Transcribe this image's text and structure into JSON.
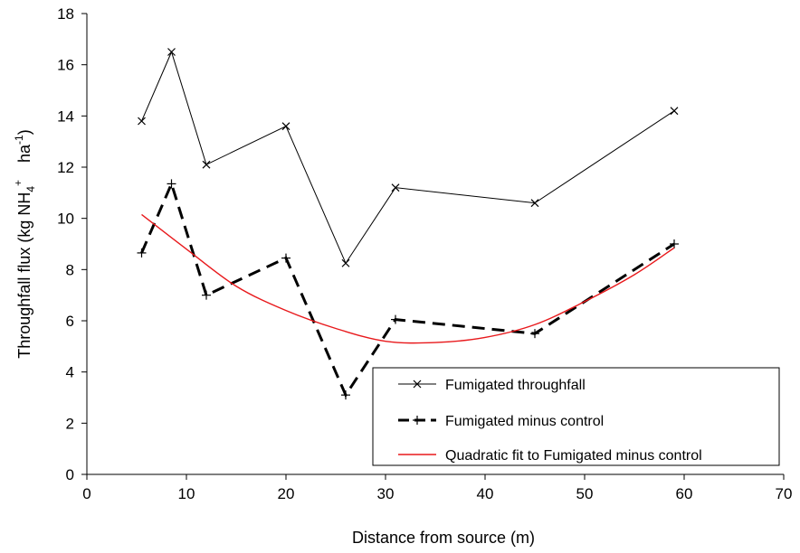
{
  "chart_data": {
    "type": "line",
    "title": "",
    "xlabel": "Distance from source (m)",
    "ylabel": {
      "main": "Throughfall flux (kg NH",
      "sub": "4",
      "sup": "+",
      "rest": " ha",
      "sup2": "-1",
      "end": ")"
    },
    "xlim": [
      0,
      70
    ],
    "ylim": [
      0,
      18
    ],
    "xticks": [
      "0",
      "10",
      "20",
      "30",
      "40",
      "50",
      "60",
      "70"
    ],
    "yticks": [
      "0",
      "2",
      "4",
      "6",
      "8",
      "10",
      "12",
      "14",
      "16",
      "18"
    ],
    "grid": false,
    "legend_position": "bottom-right",
    "series": [
      {
        "name": "Fumigated throughfall",
        "color": "#000000",
        "style": "solid",
        "marker": "x",
        "x": [
          5.5,
          8.5,
          12,
          20,
          26,
          31,
          45,
          59
        ],
        "y": [
          13.8,
          16.5,
          12.1,
          13.6,
          8.25,
          11.2,
          10.6,
          14.2
        ]
      },
      {
        "name": "Fumigated minus control",
        "color": "#000000",
        "style": "dashed",
        "marker": "+",
        "x": [
          5.5,
          8.5,
          12,
          20,
          26,
          31,
          45,
          59
        ],
        "y": [
          8.65,
          11.35,
          7.0,
          8.45,
          3.1,
          6.05,
          5.5,
          9.0
        ]
      },
      {
        "name": "Quadratic fit to Fumigated minus control",
        "color": "#e8191c",
        "style": "solid",
        "marker": "none",
        "x": [
          5.5,
          10,
          15,
          20,
          25,
          30,
          35,
          40,
          45,
          50,
          55,
          59
        ],
        "y": [
          10.15,
          8.8,
          7.35,
          6.4,
          5.7,
          5.2,
          5.15,
          5.35,
          5.85,
          6.75,
          7.8,
          8.85
        ]
      }
    ]
  }
}
